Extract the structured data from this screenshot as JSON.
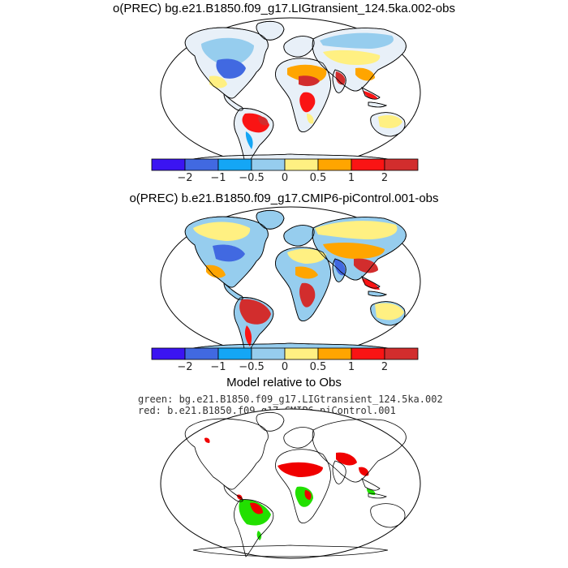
{
  "panels": [
    {
      "title": "o(PREC) bg.e21.B1850.f09_g17.LIGtransient_124.5ka.002-obs"
    },
    {
      "title": "o(PREC) b.e21.B1850.f09_g17.CMIP6-piControl.001-obs"
    }
  ],
  "colorbar": {
    "labels": [
      "−2",
      "−1",
      "−0.5",
      "0",
      "0.5",
      "1",
      "2"
    ],
    "colors": [
      "#3b14f2",
      "#4169e1",
      "#14a6f5",
      "#96cdee",
      "#fff082",
      "#ffa500",
      "#fa1414",
      "#d22d2d"
    ]
  },
  "comparison": {
    "title": "Model relative to Obs",
    "legend_green": "green: bg.e21.B1850.f09_g17.LIGtransient_124.5ka.002",
    "legend_red": "red: b.e21.B1850.f09_g17.CMIP6−piControl.001",
    "green_color": "#22e000",
    "red_color": "#f00000"
  }
}
